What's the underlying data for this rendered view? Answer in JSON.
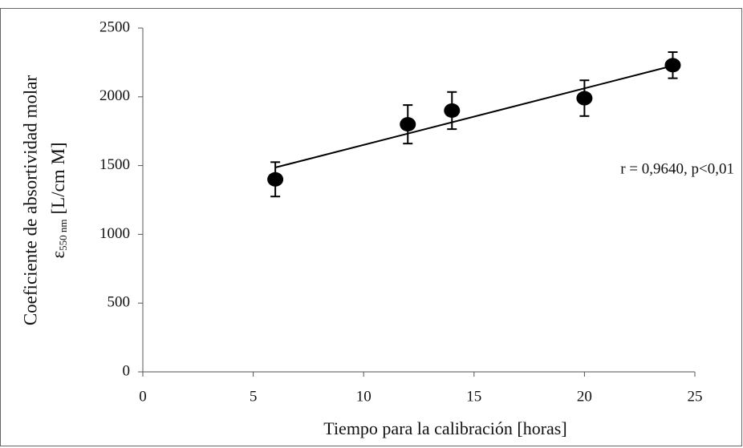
{
  "chart_data": {
    "type": "scatter",
    "x_label": "Tiempo para la calibración [horas]",
    "y_label": "Coeficiente de absortividad molar",
    "y_label_symbol": "ε",
    "y_label_subscript": "550 nm",
    "y_label_unit": "[L/cm  M]",
    "annotation": "r = 0,9640,  p<0,01",
    "x": [
      6,
      12,
      14,
      20,
      24
    ],
    "values": [
      1400,
      1800,
      1900,
      1990,
      2230
    ],
    "errors": [
      125,
      140,
      135,
      130,
      95
    ],
    "color": "#000000",
    "trendline": {
      "x": [
        6,
        24
      ],
      "y": [
        1486,
        2226
      ]
    },
    "xlim": [
      0,
      25
    ],
    "xticks": [
      0,
      5,
      10,
      15,
      20,
      25
    ],
    "ylim": [
      0,
      2500
    ],
    "yticks": [
      0,
      500,
      1000,
      1500,
      2000,
      2500
    ],
    "grid": false
  }
}
